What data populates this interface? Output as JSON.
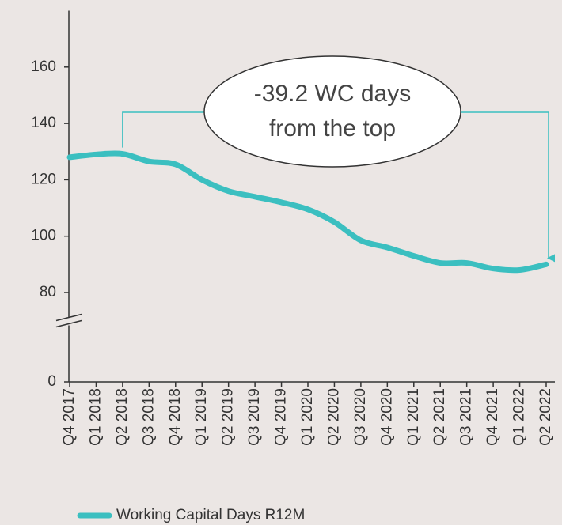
{
  "chart_data": {
    "type": "line",
    "categories": [
      "Q4 2017",
      "Q1 2018",
      "Q2 2018",
      "Q3 2018",
      "Q4 2018",
      "Q1 2019",
      "Q2 2019",
      "Q3 2019",
      "Q4 2019",
      "Q1 2020",
      "Q2 2020",
      "Q3 2020",
      "Q4 2020",
      "Q1 2021",
      "Q2 2021",
      "Q3 2021",
      "Q4 2021",
      "Q1 2022",
      "Q2 2022"
    ],
    "series": [
      {
        "name": "Working Capital Days R12M",
        "color": "#3bbfc0",
        "values": [
          128,
          129,
          129.2,
          126.5,
          125.5,
          120,
          116,
          114,
          112,
          109.5,
          105,
          98.5,
          96,
          93,
          90.5,
          90.5,
          88.5,
          88,
          90
        ]
      }
    ],
    "ylim": [
      0,
      180
    ],
    "yticks": [
      0,
      80,
      100,
      120,
      140,
      160
    ],
    "axis_break": true,
    "annotation": [
      "-39.2 WC days",
      "from the top"
    ],
    "legend": "bottom"
  }
}
